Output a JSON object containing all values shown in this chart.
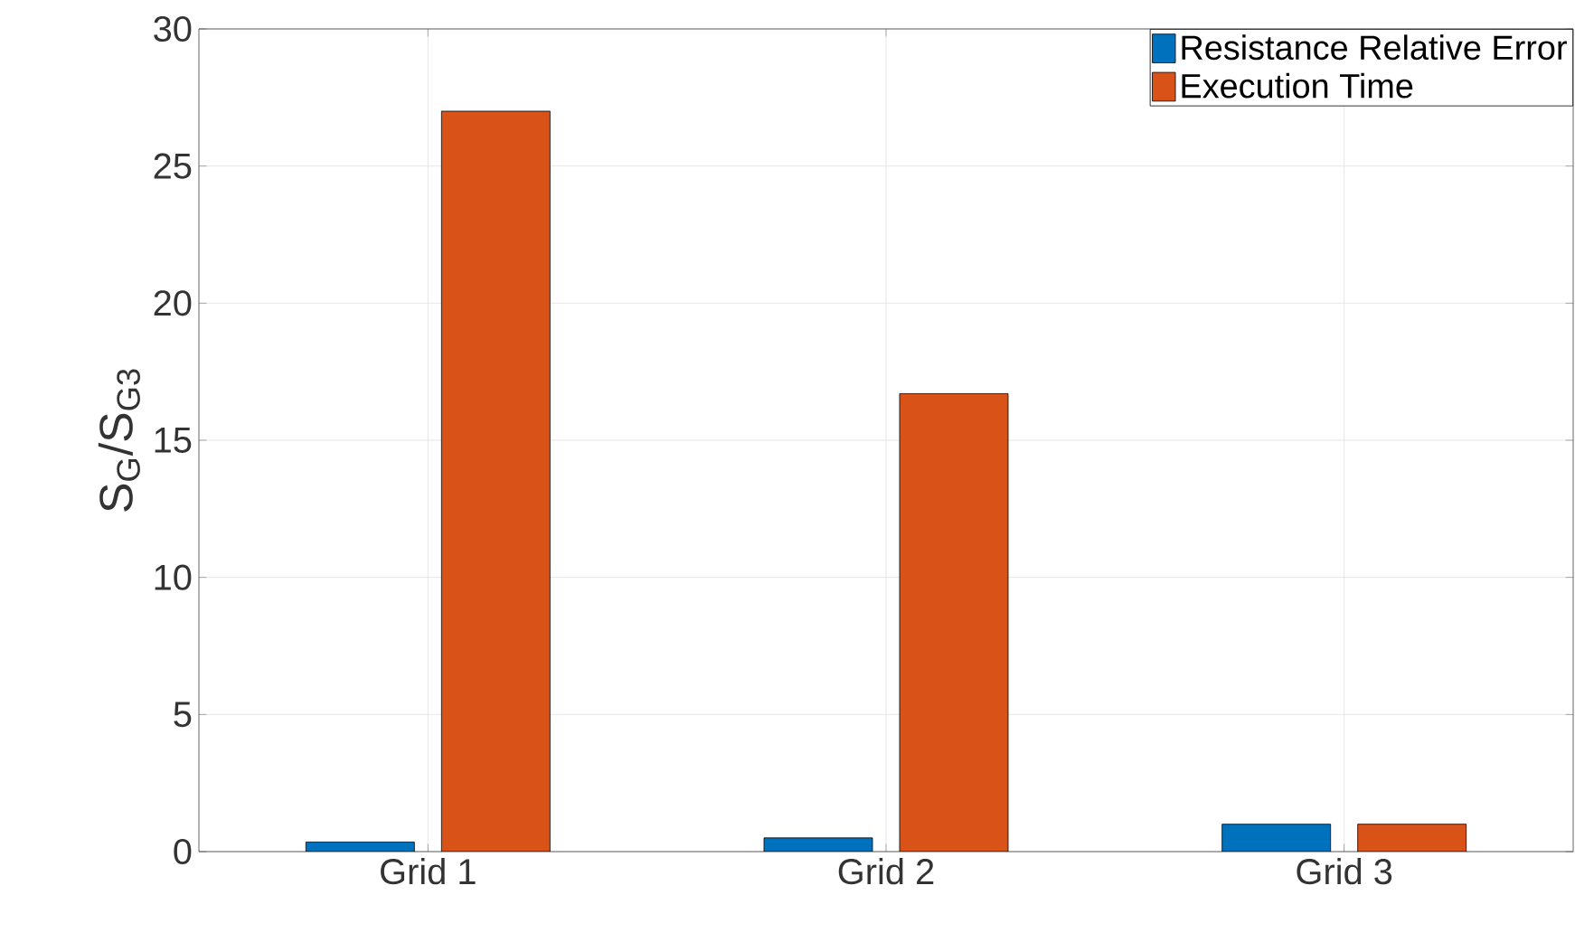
{
  "chart_data": {
    "type": "bar",
    "ylabel": "S$_{G}$/S$_{G3}$",
    "categories": [
      "Grid 1",
      "Grid 2",
      "Grid 3"
    ],
    "series": [
      {
        "name": "Resistance Relative Error",
        "color": "#0072bd",
        "values": [
          0.35,
          0.5,
          1
        ]
      },
      {
        "name": "Execution Time",
        "color": "#d95319",
        "values": [
          27,
          16.7,
          1
        ]
      }
    ],
    "ylim": [
      0,
      30
    ],
    "yticks": [
      0,
      5,
      10,
      15,
      20,
      25,
      30
    ],
    "grid": true,
    "legend": "top right"
  }
}
